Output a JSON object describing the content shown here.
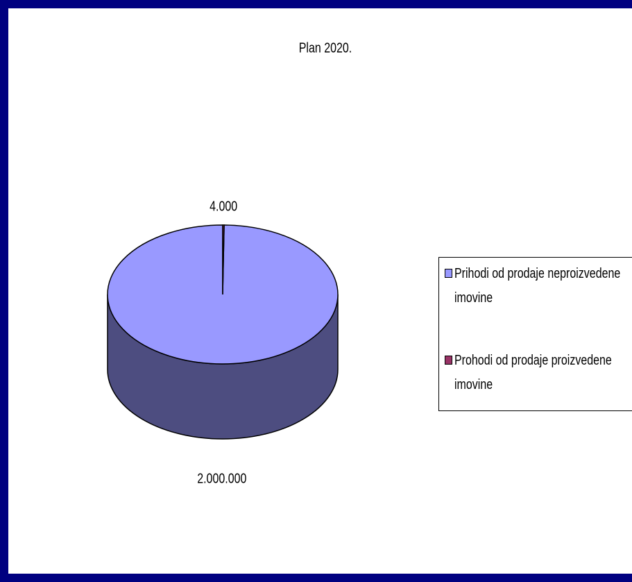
{
  "chart_data": {
    "type": "pie3d",
    "title": "Plan 2020.",
    "categories": [
      "Prihodi od prodaje neproizvedene imovine",
      "Prohodi od prodaje proizvedene imovine"
    ],
    "values": [
      2000000,
      4000
    ],
    "value_labels": [
      "2.000.000",
      "4.000"
    ],
    "colors": [
      "#9999ff",
      "#993366"
    ],
    "legend": "right"
  }
}
